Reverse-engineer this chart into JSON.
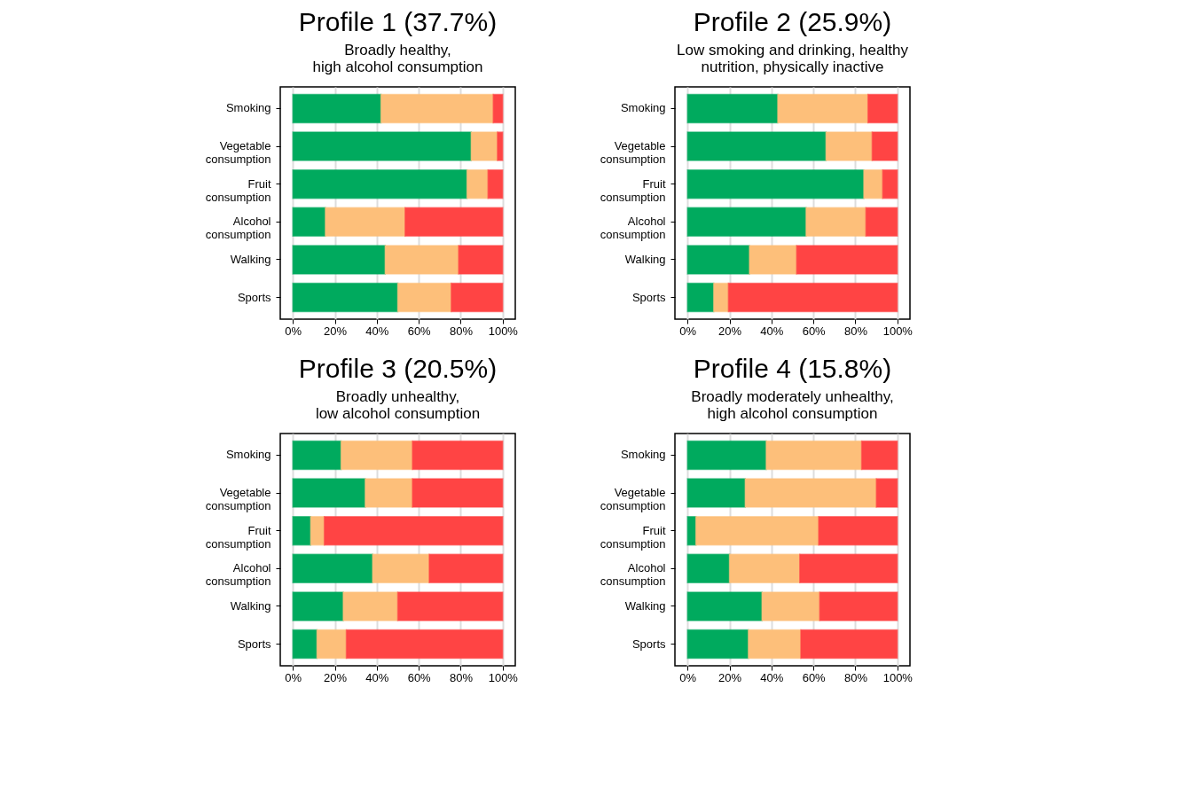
{
  "chart_data": [
    {
      "type": "bar",
      "title": "Profile 1 (37.7%)",
      "subtitle": "Broadly healthy,\nhigh alcohol consumption",
      "orientation": "horizontal",
      "stacked": true,
      "grid": "x",
      "categories": [
        "Smoking",
        "Vegetable\nconsumption",
        "Fruit\nconsumption",
        "Alcohol\nconsumption",
        "Walking",
        "Sports"
      ],
      "xlim": [
        -6,
        106
      ],
      "xticks": [
        {
          "value": 0,
          "label": "0%"
        },
        {
          "value": 20,
          "label": "20%"
        },
        {
          "value": 40,
          "label": "40%"
        },
        {
          "value": 60,
          "label": "60%"
        },
        {
          "value": 80,
          "label": "80%"
        },
        {
          "value": 100,
          "label": "100%"
        }
      ],
      "series": [
        {
          "color": "#00aa5e",
          "values": [
            42,
            85,
            83,
            15.5,
            44,
            50
          ]
        },
        {
          "color": "#fdbf7a",
          "values": [
            53.5,
            12.5,
            10,
            38,
            35,
            25.5
          ]
        },
        {
          "color": "#ff4444",
          "values": [
            4.5,
            2.5,
            7,
            46.5,
            21,
            24.5
          ]
        }
      ]
    },
    {
      "type": "bar",
      "title": "Profile 2 (25.9%)",
      "subtitle": "Low smoking and drinking, healthy\nnutrition, physically inactive",
      "orientation": "horizontal",
      "stacked": true,
      "grid": "x",
      "categories": [
        "Smoking",
        "Vegetable\nconsumption",
        "Fruit\nconsumption",
        "Alcohol\nconsumption",
        "Walking",
        "Sports"
      ],
      "xlim": [
        -6,
        106
      ],
      "xticks": [
        {
          "value": 0,
          "label": "0%"
        },
        {
          "value": 20,
          "label": "20%"
        },
        {
          "value": 40,
          "label": "40%"
        },
        {
          "value": 60,
          "label": "60%"
        },
        {
          "value": 80,
          "label": "80%"
        },
        {
          "value": 100,
          "label": "100%"
        }
      ],
      "series": [
        {
          "color": "#00aa5e",
          "values": [
            43,
            66,
            84,
            56.5,
            29.5,
            12.5
          ]
        },
        {
          "color": "#fdbf7a",
          "values": [
            43,
            22,
            9,
            28.5,
            22.5,
            7
          ]
        },
        {
          "color": "#ff4444",
          "values": [
            14,
            12,
            7,
            15,
            48,
            80.5
          ]
        }
      ]
    },
    {
      "type": "bar",
      "title": "Profile 3 (20.5%)",
      "subtitle": "Broadly unhealthy,\nlow alcohol consumption",
      "orientation": "horizontal",
      "stacked": true,
      "grid": "x",
      "categories": [
        "Smoking",
        "Vegetable\nconsumption",
        "Fruit\nconsumption",
        "Alcohol\nconsumption",
        "Walking",
        "Sports"
      ],
      "xlim": [
        -6,
        106
      ],
      "xticks": [
        {
          "value": 0,
          "label": "0%"
        },
        {
          "value": 20,
          "label": "20%"
        },
        {
          "value": 40,
          "label": "40%"
        },
        {
          "value": 60,
          "label": "60%"
        },
        {
          "value": 80,
          "label": "80%"
        },
        {
          "value": 100,
          "label": "100%"
        }
      ],
      "series": [
        {
          "color": "#00aa5e",
          "values": [
            23,
            34.5,
            8.5,
            38,
            24,
            11.5
          ]
        },
        {
          "color": "#fdbf7a",
          "values": [
            34,
            22.5,
            6.5,
            27,
            26,
            14
          ]
        },
        {
          "color": "#ff4444",
          "values": [
            43,
            43,
            85,
            35,
            50,
            74.5
          ]
        }
      ]
    },
    {
      "type": "bar",
      "title": "Profile 4 (15.8%)",
      "subtitle": "Broadly moderately unhealthy,\nhigh alcohol consumption",
      "orientation": "horizontal",
      "stacked": true,
      "grid": "x",
      "categories": [
        "Smoking",
        "Vegetable\nconsumption",
        "Fruit\nconsumption",
        "Alcohol\nconsumption",
        "Walking",
        "Sports"
      ],
      "xlim": [
        -6,
        106
      ],
      "xticks": [
        {
          "value": 0,
          "label": "0%"
        },
        {
          "value": 20,
          "label": "20%"
        },
        {
          "value": 40,
          "label": "40%"
        },
        {
          "value": 60,
          "label": "60%"
        },
        {
          "value": 80,
          "label": "80%"
        },
        {
          "value": 100,
          "label": "100%"
        }
      ],
      "series": [
        {
          "color": "#00aa5e",
          "values": [
            37.5,
            27.5,
            4,
            20,
            35.5,
            29
          ]
        },
        {
          "color": "#fdbf7a",
          "values": [
            45.5,
            62.5,
            58.5,
            33.5,
            27.5,
            25
          ]
        },
        {
          "color": "#ff4444",
          "values": [
            17,
            10,
            37.5,
            46.5,
            37,
            46
          ]
        }
      ]
    }
  ]
}
